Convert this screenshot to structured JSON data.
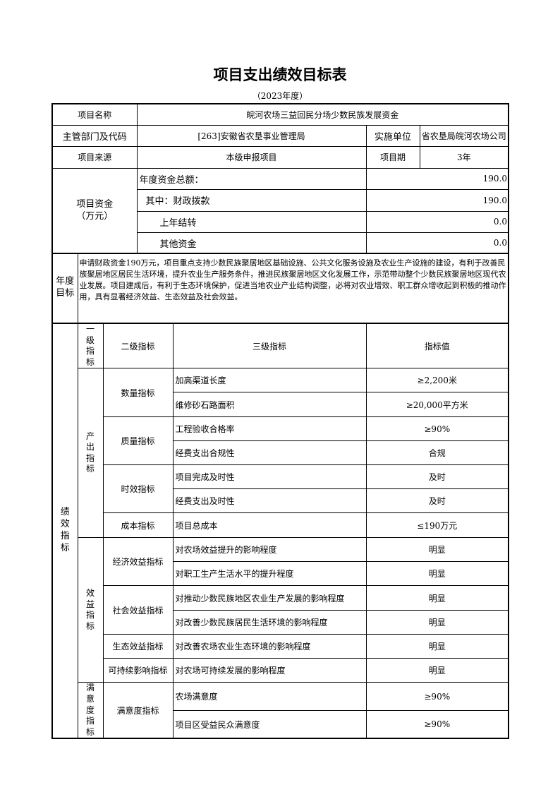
{
  "title": "项目支出绩效目标表",
  "subtitle": "（2023年度）",
  "info": {
    "name_label": "项目名称",
    "name_value": "皖河农场三益回民分场少数民族发展资金",
    "dept_label": "主管部门及代码",
    "dept_value": "[263]安徽省农垦事业管理局",
    "unit_label": "实施单位",
    "unit_value": "省农垦局皖河农场公司",
    "source_label": "项目来源",
    "source_value": "本级申报项目",
    "period_label": "项目期",
    "period_value": "3年"
  },
  "funds": {
    "label_line1": "项目资金",
    "label_line2": "（万元）",
    "rows": [
      {
        "label": "年度资金总额：",
        "value": "190.0"
      },
      {
        "label": "其中：财政拨款",
        "value": "190.0"
      },
      {
        "label": "上年结转",
        "value": "0.0"
      },
      {
        "label": "其他资金",
        "value": "0.0"
      }
    ]
  },
  "goal": {
    "label": "年度目标",
    "text": "申请财政资金190万元，项目重点支持少数民族聚居地区基础设施、公共文化服务设施及农业生产设施的建设，有利于改善民族聚居地区居民生活环境，提升农业生产服务条件，推进民族聚居地区文化发展工作，示范带动整个少数民族聚居地区现代农业发展。项目建成后，有利于生态环境保护，促进当地农业产业结构调整，必将对农业增效、职工群众增收起到积极的推动作用，具有显著经济效益、生态效益及社会效益。"
  },
  "indicators": {
    "section_label": "绩效指标",
    "headers": [
      "一级指标",
      "二级指标",
      "三级指标",
      "指标值"
    ],
    "l1": [
      "产出指标",
      "效益指标",
      "满意度指标"
    ],
    "l2": [
      "数量指标",
      "质量指标",
      "时效指标",
      "成本指标",
      "经济效益指标",
      "社会效益指标",
      "生态效益指标",
      "可持续影响指标",
      "满意度指标"
    ],
    "rows": [
      {
        "name": "加高渠道长度",
        "value": "≥2,200米"
      },
      {
        "name": "维修砂石路面积",
        "value": "≥20,000平方米"
      },
      {
        "name": "工程验收合格率",
        "value": "≥90%"
      },
      {
        "name": "经费支出合规性",
        "value": "合规"
      },
      {
        "name": "项目完成及时性",
        "value": "及时"
      },
      {
        "name": "经费支出及时性",
        "value": "及时"
      },
      {
        "name": "项目总成本",
        "value": "≤190万元"
      },
      {
        "name": "对农场效益提升的影响程度",
        "value": "明显"
      },
      {
        "name": "对职工生产生活水平的提升程度",
        "value": "明显"
      },
      {
        "name": "对推动少数民族地区农业生产发展的影响程度",
        "value": "明显"
      },
      {
        "name": "对改善少数民族居民生活环境的影响程度",
        "value": "明显"
      },
      {
        "name": "对改善农场农业生态环境的影响程度",
        "value": "明显"
      },
      {
        "name": "对农场可持续发展的影响程度",
        "value": "明显"
      },
      {
        "name": "农场满意度",
        "value": "≥90%"
      },
      {
        "name": "项目区受益民众满意度",
        "value": "≥90%"
      }
    ]
  }
}
